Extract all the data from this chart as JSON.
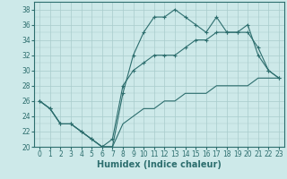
{
  "xlabel": "Humidex (Indice chaleur)",
  "x": [
    0,
    1,
    2,
    3,
    4,
    5,
    6,
    7,
    8,
    9,
    10,
    11,
    12,
    13,
    14,
    15,
    16,
    17,
    18,
    19,
    20,
    21,
    22,
    23
  ],
  "y_max": [
    26,
    25,
    23,
    23,
    22,
    21,
    20,
    20,
    27,
    32,
    35,
    37,
    37,
    38,
    37,
    36,
    35,
    37,
    35,
    35,
    36,
    32,
    30,
    29
  ],
  "y_mean": [
    26,
    25,
    23,
    23,
    22,
    21,
    20,
    21,
    28,
    30,
    31,
    32,
    32,
    32,
    33,
    34,
    34,
    35,
    35,
    35,
    35,
    33,
    30,
    29
  ],
  "y_min": [
    26,
    25,
    23,
    23,
    22,
    21,
    20,
    20,
    23,
    24,
    25,
    25,
    26,
    26,
    27,
    27,
    27,
    28,
    28,
    28,
    28,
    29,
    29,
    29
  ],
  "line_color": "#2d6e6e",
  "bg_color": "#cde9e9",
  "grid_color": "#a8cccc",
  "ylim_min": 20,
  "ylim_max": 39,
  "yticks": [
    20,
    22,
    24,
    26,
    28,
    30,
    32,
    34,
    36,
    38
  ],
  "tick_fontsize": 5.5,
  "label_fontsize": 7
}
